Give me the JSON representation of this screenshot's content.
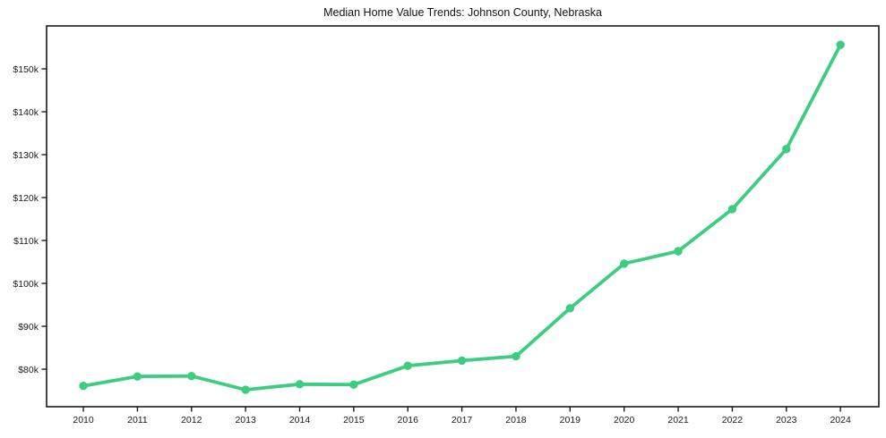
{
  "figure": {
    "background": "#ffffff"
  },
  "chart_data": {
    "type": "line",
    "title": "Median Home Value Trends: Johnson County, Nebraska",
    "xlabel": "",
    "ylabel": "",
    "x": [
      2010,
      2011,
      2012,
      2013,
      2014,
      2015,
      2016,
      2017,
      2018,
      2019,
      2020,
      2021,
      2022,
      2023,
      2024
    ],
    "x_tick_labels": [
      "2010",
      "2011",
      "2012",
      "2013",
      "2014",
      "2015",
      "2016",
      "2017",
      "2018",
      "2019",
      "2020",
      "2021",
      "2022",
      "2023",
      "2024"
    ],
    "series": [
      {
        "name": "Median Home Value",
        "values": [
          76100,
          78300,
          78400,
          75200,
          76500,
          76400,
          80800,
          82000,
          83000,
          94200,
          104600,
          107500,
          117300,
          131300,
          155600
        ],
        "color": "#3dcd80",
        "marker": "circle"
      }
    ],
    "y_ticks": [
      {
        "value": 80000,
        "label": "$80k"
      },
      {
        "value": 90000,
        "label": "$90k"
      },
      {
        "value": 100000,
        "label": "$100k"
      },
      {
        "value": 110000,
        "label": "$110k"
      },
      {
        "value": 120000,
        "label": "$120k"
      },
      {
        "value": 130000,
        "label": "$130k"
      },
      {
        "value": 140000,
        "label": "$140k"
      },
      {
        "value": 150000,
        "label": "$150k"
      }
    ],
    "xlim": [
      2009.32,
      2024.71
    ],
    "ylim": [
      71250,
      160000
    ],
    "grid": false,
    "legend": "none",
    "axis_color": "#1a1a1a",
    "tick_label_color": "#1a1a1a",
    "title_color": "#111111"
  }
}
